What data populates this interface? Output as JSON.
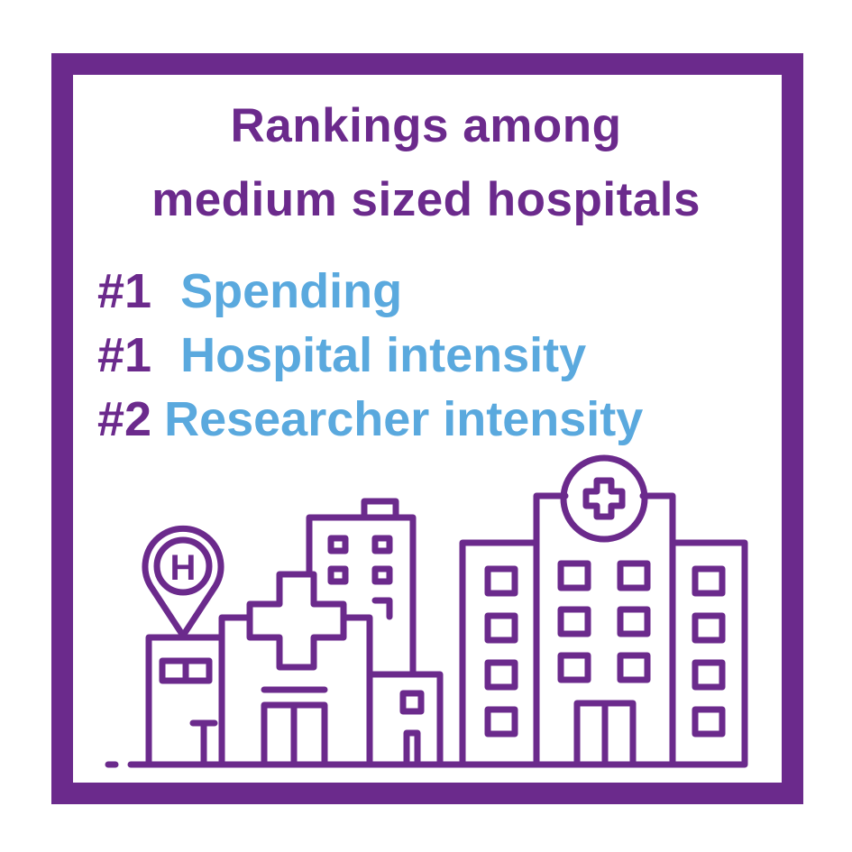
{
  "title": {
    "line1": "Rankings among",
    "line2": "medium sized hospitals"
  },
  "rankings": [
    {
      "rank": "#1",
      "label": "Spending"
    },
    {
      "rank": "#1",
      "label": "Hospital intensity"
    },
    {
      "rank": "#2",
      "label": "Researcher intensity"
    }
  ],
  "illustration": {
    "pin_letter": "H",
    "icons": [
      "hospital-pin-icon",
      "hospital-building-icon",
      "medical-cross-icon"
    ]
  },
  "colors": {
    "purple": "#6b2a8c",
    "blue": "#5aa9de",
    "background": "#ffffff"
  }
}
